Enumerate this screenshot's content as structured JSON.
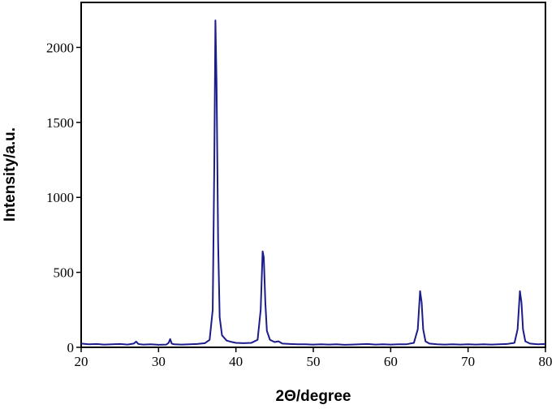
{
  "chart_data": {
    "type": "line",
    "x_label": "2Θ/degree",
    "y_label": "Intensity/a.u.",
    "x": [
      20,
      21,
      22,
      23,
      24,
      25,
      26,
      26.8,
      27.1,
      27.4,
      28,
      29,
      30,
      31,
      31.3,
      31.5,
      31.7,
      32,
      33,
      34,
      35,
      36,
      36.6,
      37,
      37.2,
      37.35,
      37.5,
      37.7,
      37.9,
      38.2,
      38.8,
      39.5,
      40,
      41,
      42,
      42.8,
      43.2,
      43.45,
      43.6,
      43.8,
      44,
      44.4,
      45,
      45.5,
      46,
      47,
      48,
      49,
      50,
      51,
      52,
      53,
      54,
      55,
      56,
      57,
      58,
      59,
      60,
      61,
      62,
      63,
      63.5,
      63.8,
      64,
      64.2,
      64.5,
      65,
      66,
      67,
      68,
      69,
      70,
      71,
      72,
      73,
      74,
      75,
      76,
      76.4,
      76.7,
      76.9,
      77.1,
      77.4,
      78,
      79,
      80
    ],
    "series": [
      {
        "color": "#1c1c8a",
        "values": [
          25,
          20,
          22,
          18,
          20,
          22,
          18,
          25,
          38,
          22,
          18,
          20,
          17,
          18,
          30,
          55,
          25,
          20,
          18,
          20,
          22,
          28,
          50,
          250,
          1200,
          2180,
          1750,
          700,
          200,
          80,
          45,
          35,
          30,
          28,
          30,
          50,
          250,
          640,
          600,
          300,
          110,
          50,
          35,
          40,
          25,
          22,
          20,
          20,
          18,
          20,
          18,
          20,
          17,
          18,
          20,
          22,
          18,
          20,
          18,
          20,
          20,
          30,
          120,
          375,
          300,
          120,
          40,
          25,
          20,
          18,
          20,
          18,
          20,
          18,
          20,
          18,
          20,
          22,
          30,
          120,
          375,
          300,
          120,
          40,
          25,
          20,
          22
        ]
      }
    ],
    "xlim": [
      20,
      80
    ],
    "ylim": [
      0,
      2300
    ],
    "xticks": [
      20,
      30,
      40,
      50,
      60,
      70,
      80
    ],
    "yticks": [
      0,
      500,
      1000,
      1500,
      2000
    ]
  }
}
